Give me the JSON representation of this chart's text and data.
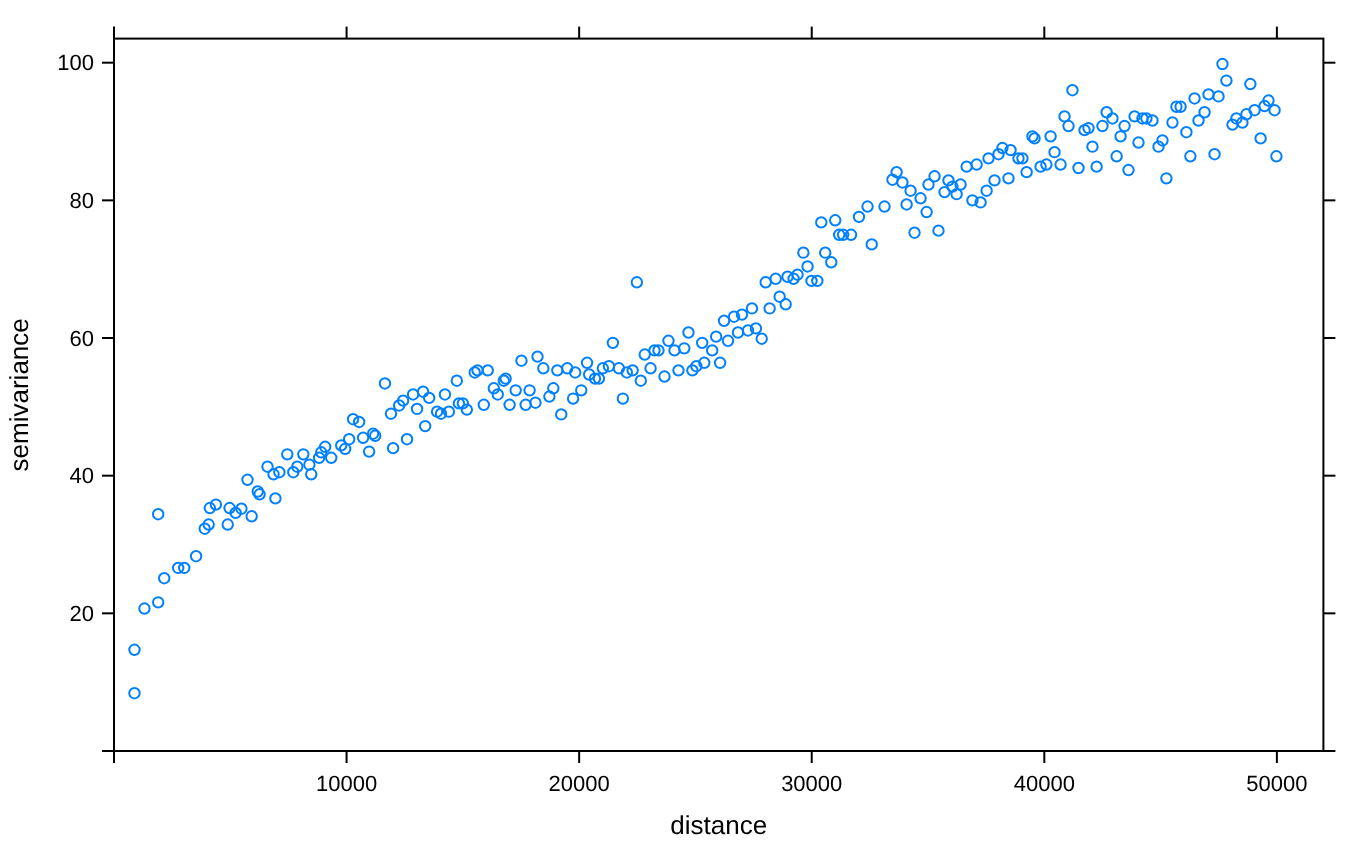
{
  "chart_data": {
    "type": "scatter",
    "xlabel": "distance",
    "ylabel": "semivariance",
    "color": "#0080ff",
    "marker": "circle",
    "grid": false,
    "xlim": [
      0,
      52000
    ],
    "ylim": [
      0,
      103.5
    ],
    "xticks": [
      {
        "value": 0,
        "label": null
      },
      10000,
      20000,
      30000,
      40000,
      50000
    ],
    "yticks": [
      {
        "value": 0,
        "label": null
      },
      20,
      40,
      60,
      80,
      100
    ],
    "x": [
      880,
      880,
      1310,
      1900,
      1900,
      2160,
      2760,
      3020,
      3530,
      3900,
      4070,
      4120,
      4380,
      4890,
      4970,
      5230,
      5480,
      5740,
      5920,
      6180,
      6260,
      6600,
      6860,
      7110,
      6940,
      7450,
      7710,
      7880,
      8140,
      8400,
      8480,
      8820,
      8910,
      9080,
      9340,
      9770,
      9940,
      10110,
      10280,
      10540,
      10710,
      10970,
      11140,
      11230,
      11650,
      11910,
      12000,
      12260,
      12430,
      12600,
      12860,
      13030,
      13290,
      13380,
      13550,
      13890,
      14060,
      14230,
      14400,
      14740,
      14830,
      15000,
      15170,
      15510,
      15630,
      15900,
      16070,
      16330,
      16500,
      16760,
      16840,
      17010,
      17270,
      17520,
      17700,
      17870,
      18120,
      18210,
      18460,
      18720,
      18890,
      19060,
      19230,
      19490,
      19740,
      19830,
      20090,
      20340,
      20430,
      20680,
      20850,
      21020,
      21280,
      21450,
      21710,
      21880,
      22050,
      22300,
      22480,
      22650,
      22820,
      23070,
      23240,
      23410,
      23670,
      23840,
      24100,
      24270,
      24520,
      24700,
      24870,
      25040,
      25290,
      25380,
      25720,
      25890,
      26060,
      26230,
      26400,
      26660,
      27000,
      26830,
      27260,
      27600,
      27430,
      27850,
      28020,
      28450,
      28190,
      28620,
      28880,
      28960,
      29220,
      29390,
      29640,
      29820,
      29990,
      30240,
      30410,
      30580,
      30840,
      31010,
      31180,
      31350,
      31690,
      32030,
      32400,
      32580,
      33130,
      33470,
      33650,
      33900,
      34080,
      34250,
      34420,
      34680,
      34940,
      35020,
      35280,
      35450,
      35710,
      35880,
      36050,
      36230,
      36400,
      36660,
      36910,
      37260,
      37090,
      37520,
      37600,
      37860,
      38030,
      38200,
      38460,
      38550,
      38890,
      39060,
      39240,
      39490,
      39580,
      39840,
      40090,
      40270,
      40440,
      40700,
      40870,
      41040,
      41210,
      41470,
      41730,
      41900,
      42070,
      42250,
      42500,
      42680,
      42930,
      43110,
      43280,
      43450,
      43620,
      43880,
      44050,
      44220,
      44390,
      44650,
      44910,
      45080,
      45250,
      45510,
      45680,
      45860,
      46110,
      46280,
      46460,
      46630,
      46890,
      47060,
      47320,
      47490,
      47660,
      47830,
      48090,
      48260,
      48520,
      48690,
      48860,
      49040,
      49300,
      49470,
      49640,
      49900,
      49980
    ],
    "values": [
      14.7,
      8.4,
      20.7,
      34.4,
      21.6,
      25.1,
      26.6,
      26.6,
      28.3,
      32.3,
      32.9,
      35.3,
      35.8,
      32.9,
      35.3,
      34.6,
      35.2,
      39.4,
      34.1,
      37.7,
      37.3,
      41.3,
      40.2,
      40.5,
      36.7,
      43.1,
      40.5,
      41.3,
      43.1,
      41.6,
      40.2,
      42.6,
      43.4,
      44.2,
      42.6,
      44.4,
      43.9,
      45.3,
      48.2,
      47.8,
      45.5,
      43.5,
      46.1,
      45.8,
      53.4,
      49.0,
      44.0,
      50.2,
      50.9,
      45.3,
      51.8,
      49.7,
      52.2,
      47.2,
      51.3,
      49.3,
      49.0,
      51.8,
      49.3,
      53.8,
      50.5,
      50.5,
      49.6,
      55.0,
      55.3,
      50.3,
      55.3,
      52.7,
      51.8,
      53.8,
      54.1,
      50.3,
      52.4,
      56.7,
      50.3,
      52.4,
      50.6,
      57.3,
      55.6,
      51.5,
      52.7,
      55.3,
      48.9,
      55.6,
      51.2,
      55.0,
      52.4,
      56.4,
      54.7,
      54.1,
      54.1,
      55.6,
      55.9,
      59.3,
      55.6,
      51.2,
      55.0,
      55.3,
      68.1,
      53.8,
      57.6,
      55.6,
      58.2,
      58.2,
      54.4,
      59.6,
      58.2,
      55.3,
      58.5,
      60.8,
      55.3,
      55.9,
      59.3,
      56.4,
      58.2,
      60.2,
      56.4,
      62.5,
      59.6,
      63.1,
      63.4,
      60.8,
      61.1,
      61.4,
      64.3,
      59.9,
      68.1,
      68.6,
      64.3,
      66.0,
      64.9,
      68.9,
      68.6,
      69.2,
      72.4,
      70.4,
      68.3,
      68.3,
      76.8,
      72.4,
      71.0,
      77.1,
      75.0,
      75.0,
      75.0,
      77.6,
      79.1,
      73.6,
      79.1,
      83.0,
      84.1,
      82.6,
      79.4,
      81.4,
      75.3,
      80.3,
      78.3,
      82.3,
      83.5,
      75.6,
      81.2,
      82.9,
      82.0,
      80.9,
      82.3,
      84.9,
      80.0,
      79.7,
      85.2,
      81.4,
      86.1,
      82.9,
      86.7,
      87.6,
      83.2,
      87.3,
      86.1,
      86.1,
      84.1,
      89.3,
      89.0,
      84.9,
      85.2,
      89.3,
      87.0,
      85.2,
      92.2,
      90.8,
      96.0,
      84.7,
      90.2,
      90.5,
      87.8,
      84.9,
      90.8,
      92.8,
      91.9,
      86.4,
      89.3,
      90.8,
      84.4,
      92.2,
      88.4,
      91.9,
      91.9,
      91.6,
      87.8,
      88.7,
      83.2,
      91.3,
      93.6,
      93.6,
      89.9,
      86.4,
      94.8,
      91.6,
      92.8,
      95.4,
      86.7,
      95.1,
      99.8,
      97.4,
      91.0,
      91.9,
      91.3,
      92.5,
      96.9,
      93.1,
      89.0,
      93.7,
      94.5,
      93.1,
      86.4
    ]
  }
}
